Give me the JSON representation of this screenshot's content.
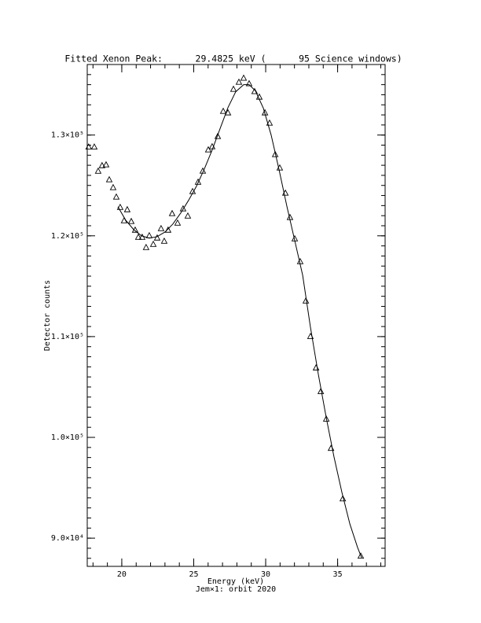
{
  "chart_data": {
    "type": "scatter-fit",
    "title": "Fitted Xenon Peak:      29.4825 keV (      95 Science windows)",
    "x_label": "Energy (keV)",
    "subtitle": "Jem×1: orbit 2020",
    "y_label": "Detector counts",
    "xlim": [
      17.6,
      38.3
    ],
    "xticks": [
      20,
      25,
      30,
      35
    ],
    "xminor": 5,
    "ylim": [
      87200,
      137000
    ],
    "yticks": [
      {
        "value": 90000,
        "label": "9.0×10⁴"
      },
      {
        "value": 100000,
        "label": "1.0×10⁵"
      },
      {
        "value": 110000,
        "label": "1.1×10⁵"
      },
      {
        "value": 120000,
        "label": "1.2×10⁵"
      },
      {
        "value": 130000,
        "label": "1.3×10⁵"
      }
    ],
    "yminor": 10,
    "color": "#000000",
    "series": [
      {
        "marker": "triangle",
        "x": [
          17.7,
          18.09,
          18.36,
          18.63,
          18.91,
          19.13,
          19.4,
          19.62,
          19.89,
          20.16,
          20.38,
          20.66,
          20.93,
          21.15,
          21.42,
          21.69,
          21.91,
          22.19,
          22.46,
          22.73,
          22.95,
          23.22,
          23.5,
          23.88,
          24.26,
          24.59,
          24.92,
          25.3,
          25.63,
          26.01,
          26.28,
          26.67,
          27.05,
          27.38,
          27.76,
          28.14,
          28.47,
          28.85,
          29.23,
          29.56,
          29.95,
          30.27,
          30.66,
          30.98,
          31.37,
          31.69,
          32.02,
          32.4,
          32.79,
          33.11,
          33.5,
          33.83,
          34.21,
          34.54,
          35.36,
          36.61
        ],
        "values": [
          128800,
          128800,
          126400,
          126950,
          127030,
          125550,
          124770,
          123830,
          122810,
          121480,
          122580,
          121410,
          120550,
          119840,
          119840,
          118830,
          120000,
          119140,
          119770,
          120700,
          119450,
          120550,
          122190,
          121250,
          122660,
          121950,
          124380,
          125310,
          126410,
          128520,
          128830,
          129840,
          132340,
          132190,
          134530,
          135230,
          135630,
          135080,
          134300,
          133750,
          132190,
          131170,
          128050,
          126720,
          124220,
          121800,
          119690,
          117420,
          113520,
          110000,
          106880,
          104530,
          101800,
          98890,
          93890,
          88200
        ]
      },
      {
        "marker": "line",
        "x": [
          19.73,
          20.27,
          20.82,
          21.37,
          21.91,
          22.46,
          23.01,
          23.55,
          24.1,
          24.64,
          25.19,
          25.74,
          26.28,
          26.83,
          27.38,
          27.92,
          28.47,
          28.85,
          29.29,
          29.84,
          30.38,
          30.93,
          31.48,
          32.02,
          32.57,
          33.11,
          33.66,
          34.21,
          34.75,
          35.3,
          35.85,
          36.39,
          36.67
        ],
        "values": [
          122890,
          121560,
          120630,
          120000,
          119770,
          119920,
          120390,
          121170,
          122270,
          123520,
          124920,
          126640,
          128520,
          130630,
          132730,
          134300,
          135000,
          135000,
          134380,
          132660,
          130000,
          126560,
          122890,
          119530,
          116090,
          110940,
          106250,
          101950,
          98050,
          94530,
          91410,
          89060,
          88050
        ]
      }
    ]
  }
}
